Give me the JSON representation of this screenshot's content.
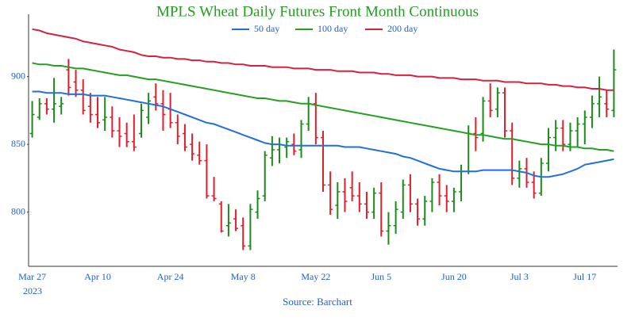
{
  "chart_data": {
    "type": "ohlc",
    "title": "MPLS Wheat Daily Futures Front Month Continuous",
    "source": "Source: Barchart",
    "year_label": "2023",
    "categories": [
      "Mar 27",
      null,
      null,
      null,
      null,
      null,
      null,
      null,
      null,
      "Apr 10",
      null,
      null,
      null,
      null,
      null,
      null,
      null,
      null,
      null,
      "Apr 24",
      null,
      null,
      null,
      null,
      null,
      null,
      null,
      null,
      null,
      "May 8",
      null,
      null,
      null,
      null,
      null,
      null,
      null,
      null,
      null,
      "May 22",
      null,
      null,
      null,
      null,
      null,
      null,
      null,
      null,
      "Jun 5",
      null,
      null,
      null,
      null,
      null,
      null,
      null,
      null,
      null,
      "Jun 20",
      null,
      null,
      null,
      null,
      null,
      null,
      null,
      null,
      "Jul 3",
      null,
      null,
      null,
      null,
      null,
      null,
      null,
      null,
      "Jul 17",
      null,
      null,
      null,
      null
    ],
    "open": [
      858,
      870,
      880,
      876,
      878,
      905,
      896,
      890,
      878,
      872,
      868,
      870,
      860,
      858,
      852,
      858,
      870,
      885,
      880,
      876,
      866,
      858,
      850,
      842,
      838,
      812,
      806,
      790,
      795,
      790,
      775,
      800,
      812,
      840,
      846,
      848,
      850,
      846,
      865,
      880,
      855,
      820,
      805,
      815,
      818,
      812,
      806,
      800,
      814,
      786,
      790,
      800,
      820,
      806,
      795,
      808,
      822,
      812,
      808,
      815,
      830,
      858,
      858,
      882,
      876,
      888,
      860,
      825,
      832,
      822,
      814,
      836,
      855,
      862,
      850,
      860,
      865,
      870,
      880,
      880,
      875
    ],
    "high": [
      882,
      884,
      884,
      899,
      885,
      913,
      905,
      898,
      888,
      885,
      885,
      878,
      870,
      866,
      872,
      880,
      888,
      895,
      890,
      888,
      872,
      865,
      858,
      852,
      850,
      826,
      808,
      806,
      802,
      796,
      806,
      816,
      845,
      856,
      855,
      855,
      858,
      868,
      885,
      888,
      860,
      830,
      822,
      825,
      830,
      822,
      815,
      818,
      822,
      800,
      808,
      824,
      828,
      810,
      812,
      825,
      828,
      820,
      818,
      835,
      864,
      870,
      885,
      895,
      892,
      892,
      866,
      838,
      840,
      830,
      840,
      862,
      868,
      868,
      866,
      870,
      875,
      886,
      900,
      890,
      920
    ],
    "low": [
      855,
      868,
      872,
      866,
      872,
      886,
      885,
      872,
      866,
      862,
      860,
      855,
      848,
      848,
      845,
      855,
      865,
      875,
      860,
      862,
      850,
      845,
      838,
      835,
      810,
      808,
      785,
      782,
      786,
      772,
      772,
      795,
      808,
      834,
      836,
      840,
      842,
      840,
      860,
      850,
      815,
      798,
      795,
      800,
      808,
      800,
      795,
      795,
      782,
      776,
      784,
      795,
      800,
      790,
      790,
      800,
      805,
      800,
      800,
      808,
      828,
      845,
      852,
      870,
      870,
      855,
      820,
      818,
      818,
      810,
      812,
      830,
      845,
      845,
      845,
      848,
      850,
      862,
      870,
      870,
      870
    ],
    "close": [
      872,
      880,
      876,
      880,
      880,
      892,
      890,
      875,
      872,
      866,
      870,
      860,
      856,
      852,
      848,
      875,
      882,
      880,
      872,
      866,
      856,
      848,
      843,
      838,
      812,
      810,
      786,
      792,
      788,
      775,
      802,
      810,
      842,
      846,
      850,
      852,
      845,
      865,
      880,
      855,
      820,
      802,
      815,
      808,
      812,
      806,
      800,
      814,
      786,
      790,
      802,
      820,
      806,
      795,
      808,
      822,
      812,
      808,
      815,
      830,
      858,
      855,
      882,
      875,
      888,
      860,
      825,
      832,
      822,
      814,
      836,
      855,
      862,
      850,
      860,
      865,
      870,
      880,
      885,
      876,
      905
    ],
    "up_color": "#1a8c1a",
    "down_color": "#e01f2d",
    "series": [
      {
        "name": "50 day",
        "color": "#1f6fe0",
        "values": [
          889,
          889,
          888,
          888,
          888,
          887,
          887,
          887,
          886,
          886,
          886,
          885,
          884,
          883,
          882,
          881,
          880,
          879,
          878,
          876,
          874,
          872,
          870,
          868,
          866,
          865,
          863,
          861,
          859,
          857,
          855,
          853,
          851,
          850,
          850,
          849,
          849,
          849,
          849,
          849,
          849,
          849,
          849,
          848,
          848,
          848,
          847,
          846,
          845,
          844,
          843,
          841,
          840,
          838,
          836,
          834,
          832,
          831,
          830,
          830,
          830,
          830,
          831,
          831,
          831,
          831,
          831,
          830,
          829,
          827,
          826,
          826,
          827,
          828,
          830,
          832,
          835,
          836,
          837,
          838,
          839
        ]
      },
      {
        "name": "100 day",
        "color": "#22a022",
        "values": [
          910,
          909,
          909,
          908,
          908,
          907,
          906,
          906,
          905,
          904,
          903,
          902,
          901,
          901,
          900,
          899,
          898,
          898,
          897,
          896,
          895,
          894,
          893,
          892,
          891,
          890,
          889,
          888,
          887,
          886,
          885,
          884,
          884,
          883,
          882,
          882,
          881,
          880,
          880,
          879,
          878,
          877,
          876,
          875,
          874,
          873,
          872,
          871,
          870,
          869,
          868,
          867,
          866,
          865,
          864,
          863,
          862,
          861,
          860,
          859,
          858,
          857,
          857,
          856,
          855,
          854,
          854,
          853,
          852,
          851,
          850,
          850,
          849,
          849,
          848,
          848,
          847,
          847,
          846,
          846,
          845
        ]
      },
      {
        "name": "200 day",
        "color": "#d62040",
        "values": [
          935,
          934,
          932,
          931,
          930,
          929,
          928,
          926,
          925,
          924,
          923,
          922,
          920,
          919,
          918,
          916,
          915,
          915,
          914,
          914,
          913,
          913,
          912,
          912,
          911,
          911,
          910,
          910,
          909,
          909,
          908,
          908,
          908,
          907,
          907,
          907,
          906,
          906,
          906,
          905,
          905,
          905,
          904,
          904,
          904,
          903,
          903,
          903,
          902,
          902,
          901,
          901,
          901,
          900,
          900,
          900,
          899,
          899,
          899,
          898,
          898,
          898,
          897,
          897,
          897,
          896,
          896,
          896,
          895,
          895,
          895,
          894,
          894,
          893,
          893,
          892,
          892,
          891,
          891,
          890,
          890
        ]
      }
    ],
    "ylim": [
      760,
      946
    ],
    "yticks": [
      800,
      850,
      900
    ],
    "grid": false
  }
}
